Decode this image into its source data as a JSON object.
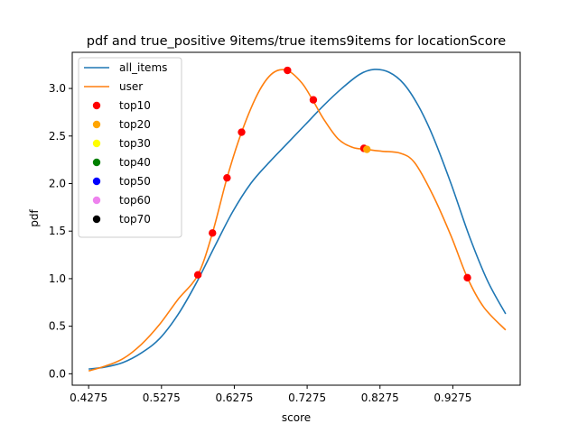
{
  "chart_data": {
    "type": "line",
    "title": "pdf and true_positive 9items/true items9items for locationScore",
    "xlabel": "score",
    "ylabel": "pdf",
    "xlim": [
      0.405,
      1.02
    ],
    "ylim": [
      -0.12,
      3.38
    ],
    "x_ticks": [
      0.4275,
      0.5275,
      0.6275,
      0.7275,
      0.8275,
      0.9275
    ],
    "x_tick_labels": [
      "0.4275",
      "0.5275",
      "0.6275",
      "0.7275",
      "0.8275",
      "0.9275"
    ],
    "y_ticks": [
      0.0,
      0.5,
      1.0,
      1.5,
      2.0,
      2.5,
      3.0
    ],
    "y_tick_labels": [
      "0.0",
      "0.5",
      "1.0",
      "1.5",
      "2.0",
      "2.5",
      "3.0"
    ],
    "grid": false,
    "legend_position": "top-left",
    "series": [
      {
        "name": "all_items",
        "kind": "line",
        "color": "#1f77b4",
        "x": [
          0.4275,
          0.45,
          0.475,
          0.5,
          0.525,
          0.55,
          0.575,
          0.6,
          0.625,
          0.65,
          0.675,
          0.7,
          0.725,
          0.75,
          0.775,
          0.8,
          0.82,
          0.84,
          0.86,
          0.88,
          0.9,
          0.925,
          0.95,
          0.975,
          1.0
        ],
        "y": [
          0.05,
          0.07,
          0.12,
          0.22,
          0.37,
          0.62,
          0.95,
          1.33,
          1.7,
          2.0,
          2.22,
          2.42,
          2.62,
          2.82,
          3.0,
          3.15,
          3.2,
          3.17,
          3.05,
          2.82,
          2.5,
          2.0,
          1.45,
          0.98,
          0.63
        ]
      },
      {
        "name": "user",
        "kind": "line",
        "color": "#ff7f0e",
        "x": [
          0.4275,
          0.45,
          0.475,
          0.5,
          0.525,
          0.55,
          0.5775,
          0.5975,
          0.6175,
          0.6375,
          0.66,
          0.68,
          0.7,
          0.72,
          0.735,
          0.75,
          0.77,
          0.79,
          0.8075,
          0.83,
          0.855,
          0.875,
          0.9,
          0.925,
          0.9475,
          0.97,
          1.0
        ],
        "y": [
          0.03,
          0.08,
          0.16,
          0.31,
          0.52,
          0.78,
          1.04,
          1.48,
          2.06,
          2.54,
          2.95,
          3.16,
          3.19,
          3.06,
          2.88,
          2.68,
          2.47,
          2.38,
          2.36,
          2.34,
          2.32,
          2.22,
          1.88,
          1.45,
          1.01,
          0.7,
          0.46
        ]
      },
      {
        "name": "top10",
        "kind": "scatter",
        "color": "#ff0000",
        "x": [
          0.5775,
          0.5975,
          0.6175,
          0.6375,
          0.7005,
          0.736,
          0.8055,
          0.9475
        ],
        "y": [
          1.04,
          1.48,
          2.06,
          2.54,
          3.19,
          2.88,
          2.37,
          1.01
        ]
      },
      {
        "name": "top20",
        "kind": "scatter",
        "color": "#ffa500",
        "x": [
          0.8095
        ],
        "y": [
          2.36
        ]
      },
      {
        "name": "top30",
        "kind": "scatter",
        "color": "#ffff00",
        "x": [],
        "y": []
      },
      {
        "name": "top40",
        "kind": "scatter",
        "color": "#008000",
        "x": [],
        "y": []
      },
      {
        "name": "top50",
        "kind": "scatter",
        "color": "#0000ff",
        "x": [],
        "y": []
      },
      {
        "name": "top60",
        "kind": "scatter",
        "color": "#ee82ee",
        "x": [],
        "y": []
      },
      {
        "name": "top70",
        "kind": "scatter",
        "color": "#000000",
        "x": [],
        "y": []
      }
    ]
  }
}
